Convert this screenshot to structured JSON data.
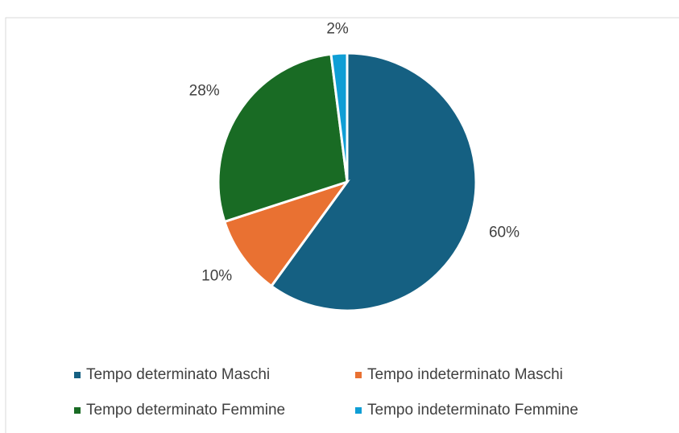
{
  "chart_data": {
    "type": "pie",
    "categories": [
      "Tempo determinato Maschi",
      "Tempo indeterminato Maschi",
      "Tempo determinato Femmine",
      "Tempo indeterminato Femmine"
    ],
    "values": [
      60,
      10,
      28,
      2
    ],
    "value_labels": [
      "60%",
      "10%",
      "28%",
      "2%"
    ],
    "colors": [
      "#156082",
      "#e97132",
      "#196b24",
      "#0f9ed5"
    ],
    "legend": "bottom"
  }
}
